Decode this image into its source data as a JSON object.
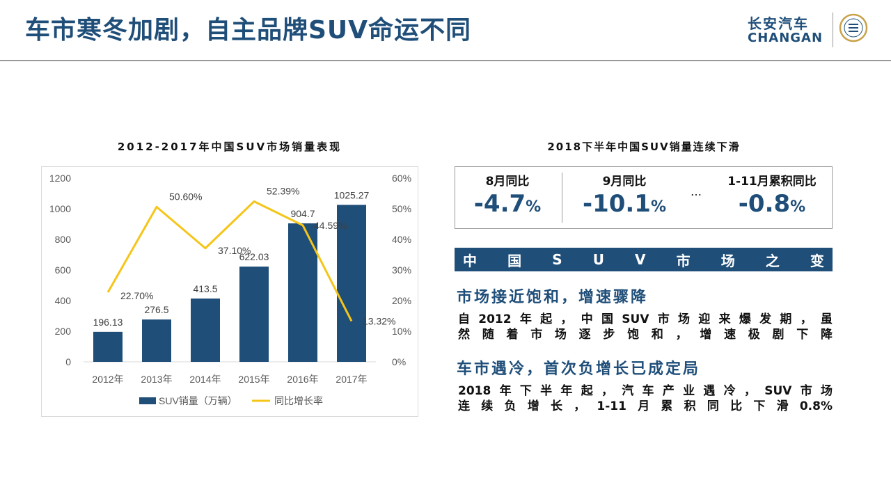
{
  "header": {
    "title": "车市寒冬加剧，自主品牌SUV命运不同",
    "logo_cn": "长安汽车",
    "logo_en": "CHANGAN"
  },
  "left_panel": {
    "title": "2012-2017年中国SUV市场销量表现"
  },
  "chart_data": {
    "type": "bar",
    "categories": [
      "2012年",
      "2013年",
      "2014年",
      "2015年",
      "2016年",
      "2017年"
    ],
    "series": [
      {
        "name": "SUV销量（万辆）",
        "type": "bar",
        "axis": "left",
        "values": [
          196.13,
          276.5,
          413.5,
          622.03,
          904.7,
          1025.27
        ],
        "labels": [
          "196.13",
          "276.5",
          "413.5",
          "622.03",
          "904.7",
          "1025.27"
        ],
        "color": "#1f4e79"
      },
      {
        "name": "同比增长率",
        "type": "line",
        "axis": "right",
        "values": [
          22.7,
          50.6,
          37.1,
          52.39,
          44.59,
          13.32
        ],
        "labels": [
          "22.70%",
          "50.60%",
          "37.10%",
          "52.39%",
          "44.59%",
          "13.32%"
        ],
        "color": "#f5c518"
      }
    ],
    "ylim": [
      0,
      1200
    ],
    "yticks": [
      "0",
      "200",
      "400",
      "600",
      "800",
      "1000",
      "1200"
    ],
    "y2lim": [
      0,
      60
    ],
    "y2ticks": [
      "0%",
      "10%",
      "20%",
      "30%",
      "40%",
      "50%",
      "60%"
    ],
    "grid": false,
    "legend": "bottom"
  },
  "right_panel": {
    "title": "2018下半年中国SUV销量连续下滑",
    "stats": [
      {
        "label": "8月同比",
        "value": "-4.7",
        "unit": "%"
      },
      {
        "label": "9月同比",
        "value": "-10.1",
        "unit": "%"
      },
      {
        "label": "1-11月累积同比",
        "value": "-0.8",
        "unit": "%"
      }
    ],
    "ellipsis": "…",
    "banner_chars": [
      "中",
      "国",
      "S",
      "U",
      "V",
      "市",
      "场",
      "之",
      "变"
    ],
    "sections": [
      {
        "heading": "市场接近饱和，增速骤降",
        "line1": "自2012年起，中国SUV市场迎来爆发期，虽",
        "line2": "然随着市场逐步饱和，增速极剧下降"
      },
      {
        "heading": "车市遇冷，首次负增长已成定局",
        "line1": "2018年下半年起，汽车产业遇冷，SUV市场",
        "line2": "连续负增长，1-11月累积同比下滑0.8%"
      }
    ]
  }
}
